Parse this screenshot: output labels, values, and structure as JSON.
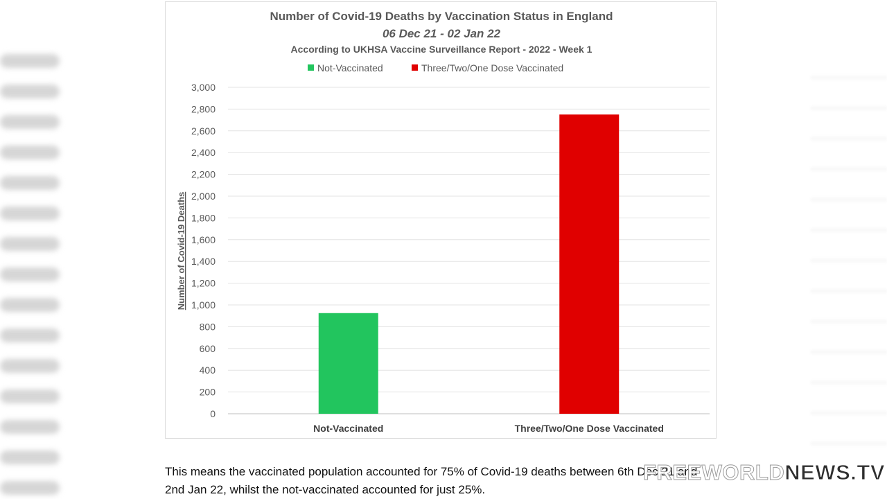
{
  "chart_data": {
    "type": "bar",
    "title": "Number of Covid-19 Deaths by Vaccination Status in England",
    "subtitle": "06 Dec 21 - 02 Jan 22",
    "source_line": "According to UKHSA Vaccine Surveillance Report - 2022 - Week 1",
    "ylabel": "Number of Covid-19 Deaths",
    "xlabel": "",
    "ylim": [
      0,
      3000
    ],
    "yticks": [
      "0",
      "200",
      "400",
      "600",
      "800",
      "1,000",
      "1,200",
      "1,400",
      "1,600",
      "1,800",
      "2,000",
      "2,200",
      "2,400",
      "2,600",
      "2,800",
      "3,000"
    ],
    "categories": [
      "Not-Vaccinated",
      "Three/Two/One Dose Vaccinated"
    ],
    "values": [
      925,
      2750
    ],
    "colors": [
      "#22c55e",
      "#e00000"
    ],
    "legend": [
      {
        "label": "Not-Vaccinated",
        "color": "#22c55e"
      },
      {
        "label": "Three/Two/One Dose Vaccinated",
        "color": "#e00000"
      }
    ],
    "legend_position": "top",
    "grid": true
  },
  "caption": "This means the vaccinated population accounted for 75% of Covid-19 deaths between 6th Dec 21 and 2nd Jan 22, whilst the not-vaccinated accounted for just 25%.",
  "watermark": {
    "part1": "FREEWORLD",
    "part2": "NEWS.TV"
  }
}
